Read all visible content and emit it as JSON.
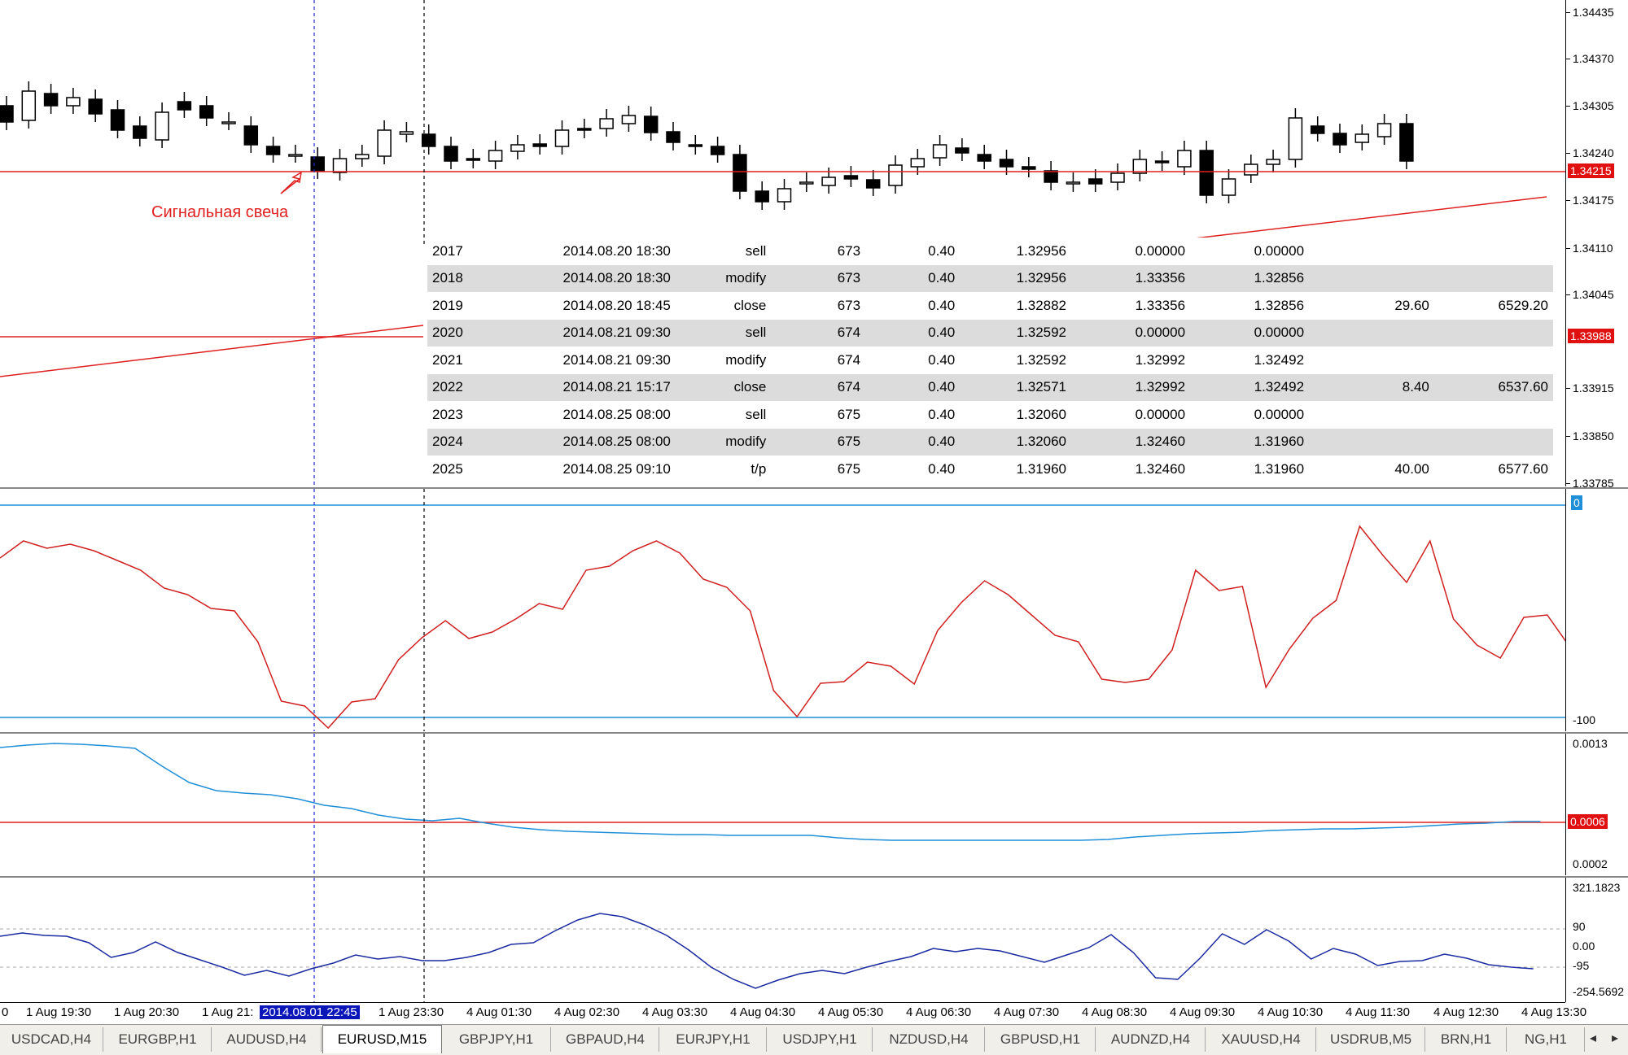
{
  "main_chart": {
    "annotation": "Сигнальная свеча",
    "price_labels": [
      "1.34435",
      "1.34370",
      "1.34305",
      "1.34240",
      "1.34175",
      "1.34110",
      "1.34045",
      "1.33915",
      "1.33850",
      "1.33785"
    ],
    "current_price": "1.34215",
    "line_price": "1.33988"
  },
  "trades": [
    {
      "id": "2017",
      "time": "2014.08.20 18:30",
      "type": "sell",
      "order": "673",
      "size": "0.40",
      "price": "1.32956",
      "sl": "0.00000",
      "tp": "0.00000",
      "profit": "",
      "balance": ""
    },
    {
      "id": "2018",
      "time": "2014.08.20 18:30",
      "type": "modify",
      "order": "673",
      "size": "0.40",
      "price": "1.32956",
      "sl": "1.33356",
      "tp": "1.32856",
      "profit": "",
      "balance": ""
    },
    {
      "id": "2019",
      "time": "2014.08.20 18:45",
      "type": "close",
      "order": "673",
      "size": "0.40",
      "price": "1.32882",
      "sl": "1.33356",
      "tp": "1.32856",
      "profit": "29.60",
      "balance": "6529.20"
    },
    {
      "id": "2020",
      "time": "2014.08.21 09:30",
      "type": "sell",
      "order": "674",
      "size": "0.40",
      "price": "1.32592",
      "sl": "0.00000",
      "tp": "0.00000",
      "profit": "",
      "balance": ""
    },
    {
      "id": "2021",
      "time": "2014.08.21 09:30",
      "type": "modify",
      "order": "674",
      "size": "0.40",
      "price": "1.32592",
      "sl": "1.32992",
      "tp": "1.32492",
      "profit": "",
      "balance": ""
    },
    {
      "id": "2022",
      "time": "2014.08.21 15:17",
      "type": "close",
      "order": "674",
      "size": "0.40",
      "price": "1.32571",
      "sl": "1.32992",
      "tp": "1.32492",
      "profit": "8.40",
      "balance": "6537.60"
    },
    {
      "id": "2023",
      "time": "2014.08.25 08:00",
      "type": "sell",
      "order": "675",
      "size": "0.40",
      "price": "1.32060",
      "sl": "0.00000",
      "tp": "0.00000",
      "profit": "",
      "balance": ""
    },
    {
      "id": "2024",
      "time": "2014.08.25 08:00",
      "type": "modify",
      "order": "675",
      "size": "0.40",
      "price": "1.32060",
      "sl": "1.32460",
      "tp": "1.31960",
      "profit": "",
      "balance": ""
    },
    {
      "id": "2025",
      "time": "2014.08.25 09:10",
      "type": "t/p",
      "order": "675",
      "size": "0.40",
      "price": "1.31960",
      "sl": "1.32460",
      "tp": "1.31960",
      "profit": "40.00",
      "balance": "6577.60"
    }
  ],
  "indicator1": {
    "top_label": "0",
    "bottom_label": "-100"
  },
  "indicator2": {
    "labels": [
      "0.0013",
      "0.0002"
    ],
    "current": "0.0006"
  },
  "indicator3": {
    "labels": [
      "321.1823",
      "90",
      "0.00",
      "-95",
      "-254.5692"
    ]
  },
  "time_axis": {
    "labels": [
      "0",
      "1 Aug 19:30",
      "1 Aug 20:30",
      "1 Aug 21:",
      "1 Aug 23:30",
      "4 Aug 01:30",
      "4 Aug 02:30",
      "4 Aug 03:30",
      "4 Aug 04:30",
      "4 Aug 05:30",
      "4 Aug 06:30",
      "4 Aug 07:30",
      "4 Aug 08:30",
      "4 Aug 09:30",
      "4 Aug 10:30",
      "4 Aug 11:30",
      "4 Aug 12:30",
      "4 Aug 13:30"
    ],
    "selected": "2014.08.01 22:45"
  },
  "tabs": [
    "USDCAD,H4",
    "EURGBP,H1",
    "AUDUSD,H4",
    "EURUSD,M15",
    "GBPJPY,H1",
    "GBPAUD,H4",
    "EURJPY,H1",
    "USDJPY,H1",
    "NZDUSD,H4",
    "GBPUSD,H1",
    "AUDNZD,H4",
    "XAUUSD,H4",
    "USDRUB,M5",
    "BRN,H1",
    "NG,H1"
  ],
  "active_tab": "EURUSD,M15",
  "nav": {
    "left": "◂",
    "right": "▸"
  },
  "colors": {
    "bull_candle": "#ffffff",
    "bear_candle": "#000000",
    "signal_red": "#e02020",
    "indicator_blue": "#1f8fd8",
    "cci_navy": "#1a2aa0",
    "selected_time": "#0a16b8"
  }
}
